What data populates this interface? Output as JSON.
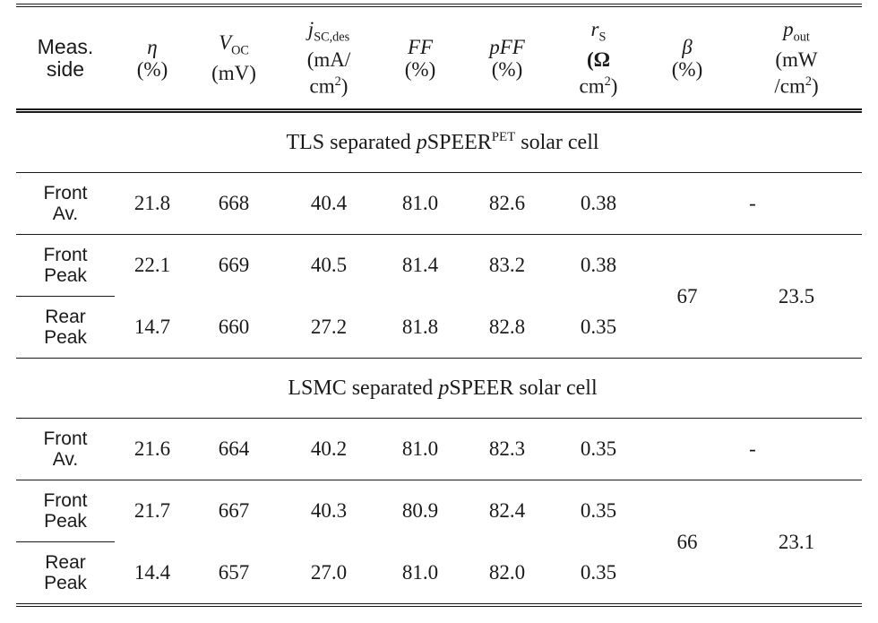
{
  "header": {
    "col_side": [
      "Meas.",
      "side"
    ],
    "col_eta": {
      "sym": "η",
      "unit": "(%)"
    },
    "col_voc": {
      "sym": "V",
      "sub": "OC",
      "unit": "(mV)"
    },
    "col_jsc": {
      "sym": "j",
      "sub": "SC,des",
      "unit1": "(mA/",
      "unit2": "cm",
      "sup": "2",
      "close": ")"
    },
    "col_ff": {
      "sym": "FF",
      "unit": "(%)"
    },
    "col_pff": {
      "sym": "pFF",
      "unit": "(%)"
    },
    "col_rs": {
      "sym": "r",
      "sub": "S",
      "unit1": "(Ω",
      "unit2": "cm",
      "sup": "2",
      "close": ")"
    },
    "col_beta": {
      "sym": "β",
      "unit": "(%)"
    },
    "col_pout": {
      "sym": "p",
      "sub": "out",
      "unit1": "(mW",
      "unit2": "/cm",
      "sup": "2",
      "close": ")"
    }
  },
  "sections": [
    {
      "title_pre": "TLS separated ",
      "title_p": "p",
      "title_main": "SPEER",
      "title_sup": "PET",
      "title_post": " solar cell",
      "rows": [
        {
          "side1": "Front",
          "side2": "Av.",
          "eta": "21.8",
          "voc": "668",
          "jsc": "40.4",
          "ff": "81.0",
          "pff": "82.6",
          "rs": "0.38",
          "dash": "-"
        },
        {
          "side1": "Front",
          "side2": "Peak",
          "eta": "22.1",
          "voc": "669",
          "jsc": "40.5",
          "ff": "81.4",
          "pff": "83.2",
          "rs": "0.38",
          "beta": "67",
          "pout": "23.5"
        },
        {
          "side1": "Rear",
          "side2": "Peak",
          "eta": "14.7",
          "voc": "660",
          "jsc": "27.2",
          "ff": "81.8",
          "pff": "82.8",
          "rs": "0.35"
        }
      ]
    },
    {
      "title_pre": "LSMC separated ",
      "title_p": "p",
      "title_main": "SPEER",
      "title_sup": "",
      "title_post": " solar cell",
      "rows": [
        {
          "side1": "Front",
          "side2": "Av.",
          "eta": "21.6",
          "voc": "664",
          "jsc": "40.2",
          "ff": "81.0",
          "pff": "82.3",
          "rs": "0.35",
          "dash": "-"
        },
        {
          "side1": "Front",
          "side2": "Peak",
          "eta": "21.7",
          "voc": "667",
          "jsc": "40.3",
          "ff": "80.9",
          "pff": "82.4",
          "rs": "0.35",
          "beta": "66",
          "pout": "23.1"
        },
        {
          "side1": "Rear",
          "side2": "Peak",
          "eta": "14.4",
          "voc": "657",
          "jsc": "27.0",
          "ff": "81.0",
          "pff": "82.0",
          "rs": "0.35"
        }
      ]
    }
  ]
}
